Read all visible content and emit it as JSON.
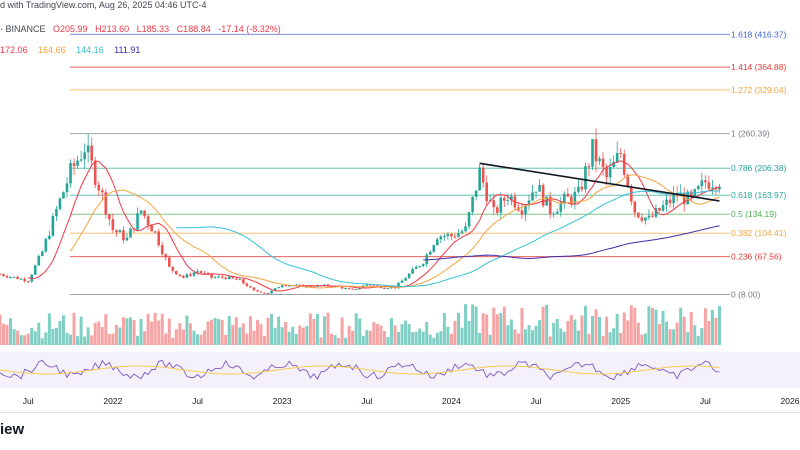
{
  "header": {
    "published_line": "d with TradingView.com, Aug 26, 2025 04:46 UTC-4",
    "exchange": "· BINANCE",
    "ohlc": [
      "O205.99",
      "H213.60",
      "L185.33",
      "C188.84",
      "-17.14 (-8.32%)"
    ],
    "ohlc_colors": [
      "#f23645",
      "#f23645",
      "#f23645",
      "#f23645",
      "#f23645"
    ],
    "moving_averages": [
      {
        "value": "172.06",
        "color": "#f23645"
      },
      {
        "value": "164.66",
        "color": "#f7a440"
      },
      {
        "value": "144.16",
        "color": "#35c1d8"
      },
      {
        "value": "111.91",
        "color": "#3f2ba6"
      }
    ]
  },
  "brand": "iew",
  "chart_data": {
    "type": "candlestick",
    "x_ticks": [
      "Jul",
      "2022",
      "Jul",
      "2023",
      "Jul",
      "2024",
      "Jul",
      "2025",
      "Jul",
      "2026"
    ],
    "fib_levels": [
      {
        "label": "1.618 (416.37)",
        "value": 416.37,
        "color": "#3d63d6"
      },
      {
        "label": "1.414 (364.88)",
        "value": 364.88,
        "color": "#e53935"
      },
      {
        "label": "1.272 (329.04)",
        "value": 329.04,
        "color": "#f7a440"
      },
      {
        "label": "1 (260.39)",
        "value": 260.39,
        "color": "#787b86"
      },
      {
        "label": "0.786 (206.38)",
        "value": 206.38,
        "color": "#26a69a"
      },
      {
        "label": "0.618 (163.97)",
        "value": 163.97,
        "color": "#26a69a"
      },
      {
        "label": "0.5 (134.19)",
        "value": 134.19,
        "color": "#4caf50"
      },
      {
        "label": "0.382 (104.41)",
        "value": 104.41,
        "color": "#f7a440"
      },
      {
        "label": "0.236 (67.56)",
        "value": 67.56,
        "color": "#e53935"
      },
      {
        "label": "0 (8.00)",
        "value": 8.0,
        "color": "#787b86"
      }
    ],
    "price_range": [
      -35,
      420
    ],
    "series": [
      {
        "name": "price",
        "points": [
          [
            "2021-05",
            40
          ],
          [
            "2021-06",
            35
          ],
          [
            "2021-07",
            30
          ],
          [
            "2021-08",
            75
          ],
          [
            "2021-09",
            140
          ],
          [
            "2021-10",
            200
          ],
          [
            "2021-11",
            240
          ],
          [
            "2021-12",
            180
          ],
          [
            "2022-01",
            110
          ],
          [
            "2022-02",
            95
          ],
          [
            "2022-03",
            140
          ],
          [
            "2022-04",
            105
          ],
          [
            "2022-05",
            50
          ],
          [
            "2022-06",
            35
          ],
          [
            "2022-07",
            45
          ],
          [
            "2022-08",
            35
          ],
          [
            "2022-09",
            35
          ],
          [
            "2022-10",
            30
          ],
          [
            "2022-11",
            14
          ],
          [
            "2022-12",
            10
          ],
          [
            "2023-01",
            24
          ],
          [
            "2023-02",
            22
          ],
          [
            "2023-03",
            21
          ],
          [
            "2023-04",
            22
          ],
          [
            "2023-05",
            20
          ],
          [
            "2023-06",
            15
          ],
          [
            "2023-07",
            24
          ],
          [
            "2023-08",
            20
          ],
          [
            "2023-09",
            19
          ],
          [
            "2023-10",
            40
          ],
          [
            "2023-11",
            60
          ],
          [
            "2023-12",
            101
          ],
          [
            "2024-01",
            100
          ],
          [
            "2024-02",
            110
          ],
          [
            "2024-03",
            200
          ],
          [
            "2024-04",
            135
          ],
          [
            "2024-05",
            165
          ],
          [
            "2024-06",
            145
          ],
          [
            "2024-07",
            180
          ],
          [
            "2024-08",
            140
          ],
          [
            "2024-09",
            155
          ],
          [
            "2024-10",
            165
          ],
          [
            "2024-11",
            235
          ],
          [
            "2024-12",
            190
          ],
          [
            "2025-01",
            230
          ],
          [
            "2025-02",
            140
          ],
          [
            "2025-03",
            125
          ],
          [
            "2025-04",
            145
          ],
          [
            "2025-05",
            165
          ],
          [
            "2025-06",
            155
          ],
          [
            "2025-07",
            185
          ],
          [
            "2025-08",
            189
          ]
        ]
      },
      {
        "name": "MA 172.06",
        "color": "#f23645"
      },
      {
        "name": "MA 164.66",
        "color": "#f7a440"
      },
      {
        "name": "MA 144.16",
        "color": "#35c1d8"
      },
      {
        "name": "MA 111.91",
        "color": "#3f2ba6"
      }
    ]
  }
}
